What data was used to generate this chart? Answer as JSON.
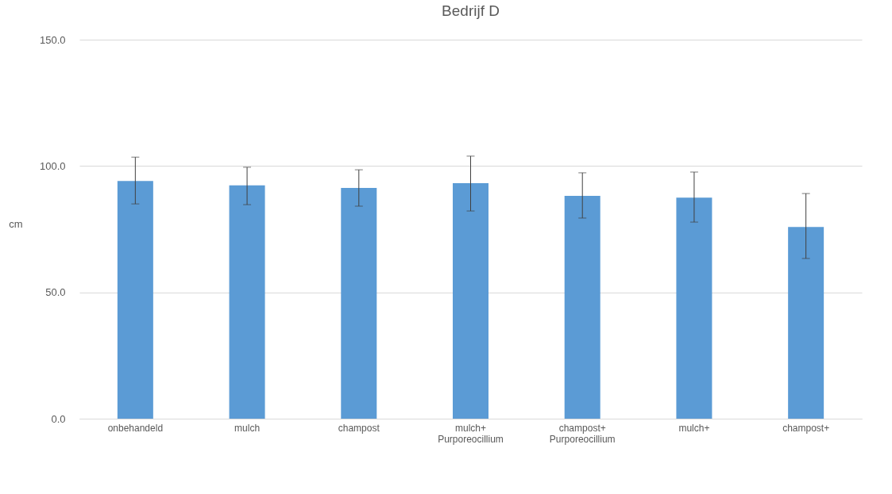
{
  "chart_data": {
    "type": "bar",
    "title": "Bedrijf D",
    "ylabel": "cm",
    "categories": [
      "onbehandeld",
      "mulch",
      "champost",
      "mulch+\nPurporeocillium",
      "champost+\nPurporeocillium",
      "mulch+",
      "champost+"
    ],
    "values": [
      94.1,
      92.3,
      91.3,
      93.2,
      88.2,
      87.5,
      75.9
    ],
    "errors": [
      [
        85.0,
        103.5
      ],
      [
        84.7,
        99.5
      ],
      [
        84.1,
        98.5
      ],
      [
        82.2,
        103.9
      ],
      [
        79.4,
        97.3
      ],
      [
        77.8,
        97.6
      ],
      [
        63.4,
        89.1
      ]
    ],
    "color": "#5b9bd5",
    "ylim": [
      0,
      150
    ],
    "yticks": [
      {
        "value": 0,
        "label": "0.0"
      },
      {
        "value": 50,
        "label": "50.0"
      },
      {
        "value": 100,
        "label": "100.0"
      },
      {
        "value": 150,
        "label": "150.0"
      }
    ],
    "grid": "y"
  }
}
